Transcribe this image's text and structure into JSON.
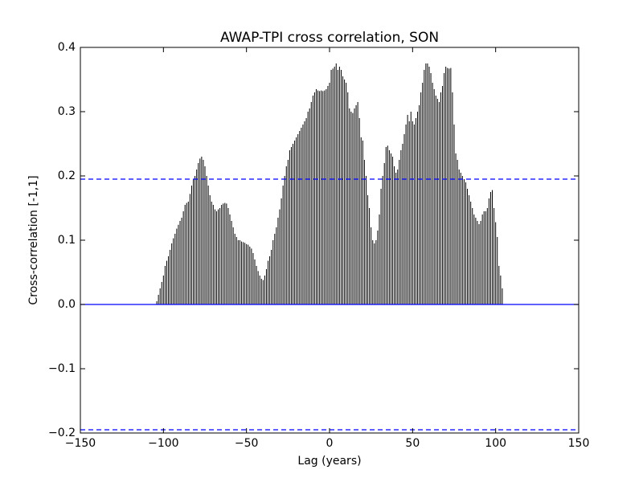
{
  "chart_data": {
    "type": "vlines",
    "title": "AWAP-TPI cross correlation, SON",
    "xlabel": "Lag (years)",
    "ylabel": "Cross-correlation [-1,1]",
    "x": [
      -104,
      -103,
      -102,
      -101,
      -100,
      -99,
      -98,
      -97,
      -96,
      -95,
      -94,
      -93,
      -92,
      -91,
      -90,
      -89,
      -88,
      -87,
      -86,
      -85,
      -84,
      -83,
      -82,
      -81,
      -80,
      -79,
      -78,
      -77,
      -76,
      -75,
      -74,
      -73,
      -72,
      -71,
      -70,
      -69,
      -68,
      -67,
      -66,
      -65,
      -64,
      -63,
      -62,
      -61,
      -60,
      -59,
      -58,
      -57,
      -56,
      -55,
      -54,
      -53,
      -52,
      -51,
      -50,
      -49,
      -48,
      -47,
      -46,
      -45,
      -44,
      -43,
      -42,
      -41,
      -40,
      -39,
      -38,
      -37,
      -36,
      -35,
      -34,
      -33,
      -32,
      -31,
      -30,
      -29,
      -28,
      -27,
      -26,
      -25,
      -24,
      -23,
      -22,
      -21,
      -20,
      -19,
      -18,
      -17,
      -16,
      -15,
      -14,
      -13,
      -12,
      -11,
      -10,
      -9,
      -8,
      -7,
      -6,
      -5,
      -4,
      -3,
      -2,
      -1,
      0,
      1,
      2,
      3,
      4,
      5,
      6,
      7,
      8,
      9,
      10,
      11,
      12,
      13,
      14,
      15,
      16,
      17,
      18,
      19,
      20,
      21,
      22,
      23,
      24,
      25,
      26,
      27,
      28,
      29,
      30,
      31,
      32,
      33,
      34,
      35,
      36,
      37,
      38,
      39,
      40,
      41,
      42,
      43,
      44,
      45,
      46,
      47,
      48,
      49,
      50,
      51,
      52,
      53,
      54,
      55,
      56,
      57,
      58,
      59,
      60,
      61,
      62,
      63,
      64,
      65,
      66,
      67,
      68,
      69,
      70,
      71,
      72,
      73,
      74,
      75,
      76,
      77,
      78,
      79,
      80,
      81,
      82,
      83,
      84,
      85,
      86,
      87,
      88,
      89,
      90,
      91,
      92,
      93,
      94,
      95,
      96,
      97,
      98,
      99,
      100,
      101,
      102,
      103,
      104
    ],
    "values": [
      0.005,
      0.015,
      0.025,
      0.035,
      0.045,
      0.06,
      0.068,
      0.075,
      0.085,
      0.095,
      0.103,
      0.11,
      0.118,
      0.124,
      0.13,
      0.135,
      0.145,
      0.155,
      0.158,
      0.16,
      0.172,
      0.185,
      0.195,
      0.2,
      0.21,
      0.22,
      0.227,
      0.23,
      0.225,
      0.215,
      0.2,
      0.185,
      0.17,
      0.16,
      0.155,
      0.148,
      0.145,
      0.148,
      0.15,
      0.155,
      0.157,
      0.158,
      0.157,
      0.15,
      0.14,
      0.13,
      0.12,
      0.11,
      0.105,
      0.1,
      0.1,
      0.098,
      0.097,
      0.096,
      0.094,
      0.093,
      0.09,
      0.087,
      0.08,
      0.07,
      0.06,
      0.052,
      0.045,
      0.04,
      0.038,
      0.045,
      0.055,
      0.068,
      0.075,
      0.085,
      0.1,
      0.11,
      0.12,
      0.135,
      0.148,
      0.165,
      0.185,
      0.2,
      0.215,
      0.225,
      0.24,
      0.245,
      0.25,
      0.255,
      0.26,
      0.265,
      0.27,
      0.275,
      0.28,
      0.285,
      0.29,
      0.3,
      0.305,
      0.315,
      0.325,
      0.33,
      0.335,
      0.333,
      0.332,
      0.333,
      0.332,
      0.333,
      0.335,
      0.34,
      0.345,
      0.365,
      0.367,
      0.37,
      0.375,
      0.365,
      0.37,
      0.365,
      0.355,
      0.35,
      0.345,
      0.33,
      0.305,
      0.3,
      0.298,
      0.305,
      0.31,
      0.315,
      0.29,
      0.26,
      0.255,
      0.225,
      0.2,
      0.17,
      0.15,
      0.12,
      0.1,
      0.095,
      0.1,
      0.115,
      0.14,
      0.18,
      0.2,
      0.22,
      0.245,
      0.247,
      0.24,
      0.235,
      0.23,
      0.215,
      0.205,
      0.21,
      0.225,
      0.24,
      0.25,
      0.265,
      0.28,
      0.295,
      0.285,
      0.3,
      0.285,
      0.28,
      0.29,
      0.3,
      0.31,
      0.33,
      0.345,
      0.365,
      0.375,
      0.375,
      0.37,
      0.36,
      0.345,
      0.335,
      0.325,
      0.32,
      0.315,
      0.33,
      0.34,
      0.36,
      0.37,
      0.368,
      0.367,
      0.368,
      0.33,
      0.28,
      0.235,
      0.225,
      0.21,
      0.205,
      0.2,
      0.195,
      0.19,
      0.18,
      0.17,
      0.16,
      0.15,
      0.14,
      0.135,
      0.13,
      0.125,
      0.13,
      0.14,
      0.145,
      0.145,
      0.15,
      0.165,
      0.175,
      0.178,
      0.15,
      0.128,
      0.105,
      0.06,
      0.045,
      0.025
    ],
    "color": "#000000",
    "hlines": [
      {
        "value": 0,
        "style": "solid"
      },
      {
        "value": 0.195,
        "style": "dashed"
      },
      {
        "value": -0.195,
        "style": "dashed"
      }
    ],
    "hline_color": "#0000ff",
    "xlim": [
      -150,
      150
    ],
    "xticks": [
      {
        "value": -150,
        "label": "−150"
      },
      {
        "value": -100,
        "label": "−100"
      },
      {
        "value": -50,
        "label": "−50"
      },
      0,
      50,
      100,
      150
    ],
    "ylim": [
      -0.2,
      0.4
    ],
    "yticks": [
      {
        "value": -0.2,
        "label": "−0.2"
      },
      {
        "value": -0.1,
        "label": "−0.1"
      },
      {
        "value": 0,
        "label": "0.0"
      },
      0.1,
      0.2,
      0.3,
      0.4
    ],
    "grid": false
  }
}
